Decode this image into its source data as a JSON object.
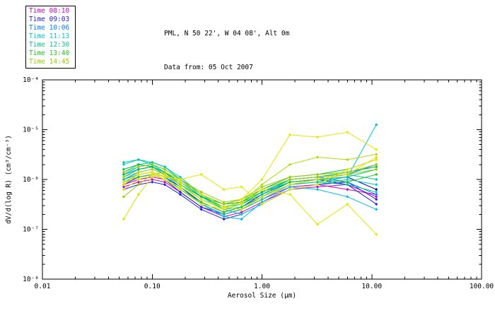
{
  "header": {
    "line1": "PML, N 50 22', W 04 08', Alt 0m",
    "line2": "Data from: 05 Oct 2007"
  },
  "legend": {
    "position": "top-left",
    "entries": [
      {
        "label": "Time 08:10",
        "color": "#cc00cc"
      },
      {
        "label": "Time 09:03",
        "color": "#2222dd"
      },
      {
        "label": "Time 10:06",
        "color": "#0080ff"
      },
      {
        "label": "Time 11:13",
        "color": "#00c8dc"
      },
      {
        "label": "Time 12:30",
        "color": "#00cc88"
      },
      {
        "label": "Time 13:40",
        "color": "#22c822"
      },
      {
        "label": "Time 14:45",
        "color": "#99cc00"
      }
    ]
  },
  "chart_data": {
    "type": "line",
    "title": "PML, N 50 22', W 04 08', Alt 0m",
    "subtitle": "Data from: 05 Oct 2007",
    "xlabel": "Aerosol Size (μm)",
    "ylabel": "dV/d(log R) (cm³/cm⁻³)",
    "x_scale": "log",
    "y_scale": "log",
    "xlim": [
      0.01,
      100
    ],
    "ylim": [
      1e-08,
      0.0001
    ],
    "grid": false,
    "x_ticks": [
      {
        "v": 0.01,
        "label": "0.01"
      },
      {
        "v": 0.1,
        "label": "0.10"
      },
      {
        "v": 1,
        "label": "1.00"
      },
      {
        "v": 10,
        "label": "10.00"
      },
      {
        "v": 100,
        "label": "100.00"
      }
    ],
    "y_ticks": [
      {
        "v": 1e-08,
        "label": "10⁻⁸"
      },
      {
        "v": 1e-07,
        "label": "10⁻⁷"
      },
      {
        "v": 1e-06,
        "label": "10⁻⁶"
      },
      {
        "v": 1e-05,
        "label": "10⁻⁵"
      },
      {
        "v": 0.0001,
        "label": "10⁻⁴"
      }
    ],
    "x": [
      0.055,
      0.075,
      0.1,
      0.13,
      0.18,
      0.28,
      0.45,
      0.65,
      1.0,
      1.8,
      3.2,
      6.0,
      11.0
    ],
    "series": [
      {
        "color": "#cc00cc",
        "y": [
          7.9e-07,
          1e-06,
          1.12e-06,
          1e-06,
          6.3e-07,
          3.2e-07,
          2e-07,
          2.5e-07,
          4e-07,
          7.1e-07,
          7.9e-07,
          6.3e-07,
          5e-07
        ]
      },
      {
        "color": "#cc00cc",
        "y": [
          7.1e-07,
          8.9e-07,
          1e-06,
          8.9e-07,
          5.6e-07,
          2.8e-07,
          1.8e-07,
          2.2e-07,
          3.5e-07,
          6.3e-07,
          7.1e-07,
          7.9e-07,
          4.5e-07
        ]
      },
      {
        "color": "#2222dd",
        "y": [
          6.3e-07,
          7.9e-07,
          8.9e-07,
          7.9e-07,
          5e-07,
          2.5e-07,
          1.6e-07,
          2e-07,
          3.2e-07,
          6.3e-07,
          7.9e-07,
          8.9e-07,
          4e-07
        ]
      },
      {
        "color": "#2222dd",
        "y": [
          7.9e-07,
          1.12e-06,
          1.26e-06,
          1e-06,
          5.6e-07,
          2.8e-07,
          2e-07,
          2.5e-07,
          4.5e-07,
          7.9e-07,
          1e-06,
          7.9e-07,
          3.2e-07
        ]
      },
      {
        "color": "#0000aa",
        "y": [
          8.9e-07,
          1.26e-06,
          1.4e-06,
          1.12e-06,
          7.1e-07,
          3.5e-07,
          2.2e-07,
          2.8e-07,
          5e-07,
          8.9e-07,
          1e-06,
          1.12e-06,
          6.3e-07
        ]
      },
      {
        "color": "#0080ff",
        "y": [
          1e-06,
          1.4e-06,
          1.6e-06,
          1.26e-06,
          7.9e-07,
          4e-07,
          2.5e-07,
          3.2e-07,
          5e-07,
          8.9e-07,
          1e-06,
          1.26e-06,
          2e-06
        ]
      },
      {
        "color": "#0080ff",
        "y": [
          1.12e-06,
          1.6e-06,
          1.8e-06,
          1.4e-06,
          8.9e-07,
          4.5e-07,
          2.8e-07,
          3.5e-07,
          5.6e-07,
          1e-06,
          1.12e-06,
          8.9e-07,
          5e-07
        ]
      },
      {
        "color": "#00bbee",
        "y": [
          1.26e-06,
          1.8e-06,
          2e-06,
          1.6e-06,
          1e-06,
          4.5e-07,
          2.5e-07,
          2.8e-07,
          4.5e-07,
          7.9e-07,
          8.9e-07,
          1.12e-06,
          1.26e-05
        ]
      },
      {
        "color": "#00cccc",
        "y": [
          2e-06,
          2.5e-06,
          2.2e-06,
          1.8e-06,
          1.12e-06,
          5e-07,
          2.5e-07,
          2e-07,
          3.2e-07,
          6.3e-07,
          7.9e-07,
          1e-06,
          7.9e-07
        ]
      },
      {
        "color": "#00bbee",
        "y": [
          1.12e-06,
          1.6e-06,
          1.8e-06,
          1.26e-06,
          7.1e-07,
          3.2e-07,
          1.8e-07,
          1.6e-07,
          3.5e-07,
          7.1e-07,
          6.3e-07,
          4.5e-07,
          2.5e-07
        ]
      },
      {
        "color": "#00cc88",
        "y": [
          1.4e-06,
          2e-06,
          2.2e-06,
          1.8e-06,
          1e-06,
          5e-07,
          3.2e-07,
          3.5e-07,
          5.6e-07,
          8.9e-07,
          1e-06,
          1.12e-06,
          1.6e-06
        ]
      },
      {
        "color": "#00cc88",
        "y": [
          1e-06,
          1.26e-06,
          1.4e-06,
          1.12e-06,
          6.3e-07,
          3.2e-07,
          2e-07,
          2.5e-07,
          4e-07,
          7.9e-07,
          8.9e-07,
          7.9e-07,
          5.6e-07
        ]
      },
      {
        "color": "#00c8a0",
        "y": [
          2.2e-06,
          2.5e-06,
          2e-06,
          1.4e-06,
          8.9e-07,
          4.5e-07,
          2.8e-07,
          3.2e-07,
          5e-07,
          1e-06,
          1.12e-06,
          1.26e-06,
          1e-06
        ]
      },
      {
        "color": "#00bb44",
        "y": [
          1.26e-06,
          1.6e-06,
          1.8e-06,
          1.4e-06,
          7.9e-07,
          4e-07,
          2.5e-07,
          3.2e-07,
          5.6e-07,
          1e-06,
          1.12e-06,
          1.4e-06,
          1.8e-06
        ]
      },
      {
        "color": "#22c822",
        "y": [
          8.9e-07,
          1.12e-06,
          1.26e-06,
          1e-06,
          6.3e-07,
          3.5e-07,
          2.2e-07,
          2.8e-07,
          4.5e-07,
          8.9e-07,
          1e-06,
          8.9e-07,
          1.26e-06
        ]
      },
      {
        "color": "#00bb44",
        "y": [
          1.6e-06,
          2e-06,
          1.8e-06,
          1.26e-06,
          7.9e-07,
          4.5e-07,
          3.2e-07,
          3.5e-07,
          6.3e-07,
          1.12e-06,
          1.26e-06,
          1.6e-06,
          2.5e-06
        ]
      },
      {
        "color": "#99cc00",
        "y": [
          1.4e-06,
          1.8e-06,
          2e-06,
          1.6e-06,
          1e-06,
          5e-07,
          3.2e-07,
          4e-07,
          7.1e-07,
          1.12e-06,
          1.26e-06,
          1.4e-06,
          2e-06
        ]
      },
      {
        "color": "#99cc00",
        "y": [
          4.5e-07,
          7.9e-07,
          1.26e-06,
          1.4e-06,
          1e-06,
          5.6e-07,
          3.5e-07,
          4e-07,
          6.3e-07,
          1e-06,
          1.12e-06,
          1.26e-06,
          1.6e-06
        ]
      },
      {
        "color": "#aadd00",
        "y": [
          1.12e-06,
          1.4e-06,
          1.6e-06,
          1.26e-06,
          7.9e-07,
          4e-07,
          2.8e-07,
          3.5e-07,
          7.9e-07,
          2e-06,
          2.8e-06,
          2.5e-06,
          3.2e-06
        ]
      },
      {
        "color": "#e6e600",
        "y": [
          7.9e-07,
          1.26e-06,
          1.4e-06,
          1e-06,
          6.3e-07,
          3.2e-07,
          2.5e-07,
          4e-07,
          1e-06,
          7.9e-06,
          7.1e-06,
          8.9e-06,
          4e-06
        ]
      },
      {
        "color": "#e6e600",
        "y": [
          6.3e-07,
          1e-06,
          1.26e-06,
          1e-06,
          7.1e-07,
          4e-07,
          2.5e-07,
          3.2e-07,
          6.3e-07,
          5e-07,
          1.26e-07,
          3.2e-07,
          7.9e-08
        ]
      },
      {
        "color": "#dddd00",
        "y": [
          1.6e-07,
          5e-07,
          1.12e-06,
          1.26e-06,
          8.9e-07,
          5e-07,
          2.8e-07,
          2.5e-07,
          4.5e-07,
          7.9e-07,
          1e-06,
          1.26e-06,
          2.8e-06
        ]
      },
      {
        "color": "#e6e600",
        "y": [
          8.9e-07,
          1.26e-06,
          1.4e-06,
          1.12e-06,
          1e-06,
          1.26e-06,
          6.3e-07,
          7.1e-07,
          3.2e-07,
          6.3e-07,
          7.9e-07,
          1.6e-06,
          2.5e-06
        ]
      }
    ]
  }
}
